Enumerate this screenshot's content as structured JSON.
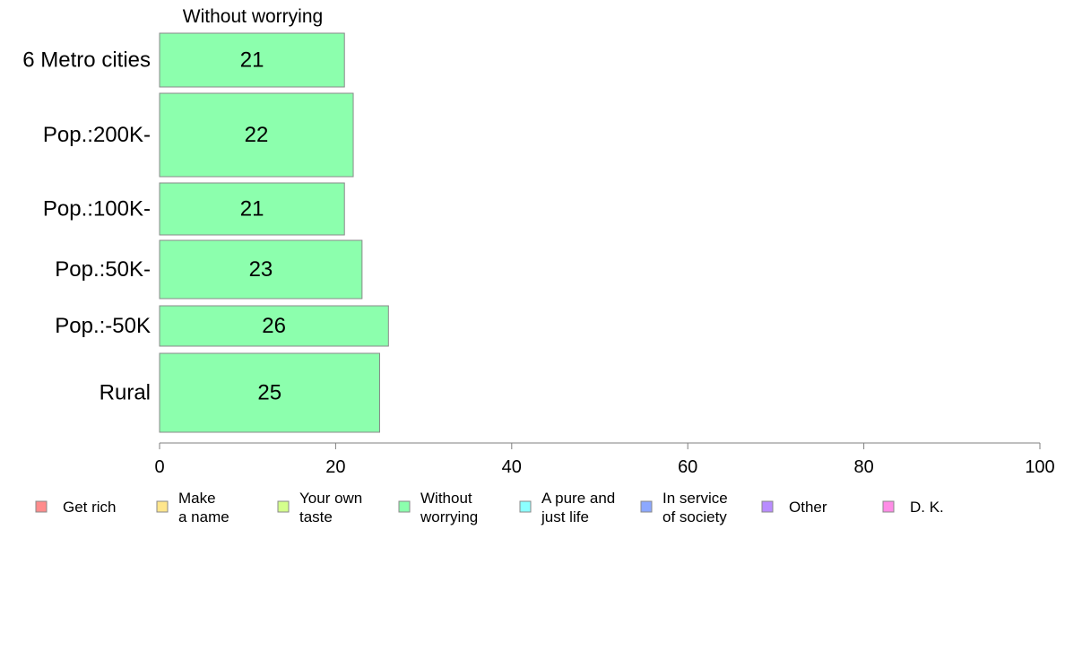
{
  "chart_data": {
    "type": "bar",
    "orientation": "horizontal",
    "title": "Without worrying",
    "categories": [
      "6 Metro cities",
      "Pop.:200K-",
      "Pop.:100K-",
      "Pop.:50K-",
      "Pop.:-50K",
      "Rural"
    ],
    "series": [
      {
        "name": "Without worrying",
        "values": [
          21,
          22,
          21,
          23,
          26,
          25
        ],
        "color": "#8CFFAD"
      }
    ],
    "xlim": [
      0,
      100
    ],
    "xticks": [
      0,
      20,
      40,
      60,
      80,
      100
    ],
    "grid": false,
    "legend_position": "bottom",
    "legend": [
      {
        "label": [
          "Get rich"
        ],
        "color": "#FF8C8C"
      },
      {
        "label": [
          "Make",
          "a name"
        ],
        "color": "#FFE68C"
      },
      {
        "label": [
          "Your own",
          "taste"
        ],
        "color": "#D4FF8C"
      },
      {
        "label": [
          "Without",
          "worrying"
        ],
        "color": "#8CFFAD"
      },
      {
        "label": [
          "A pure and",
          "just life"
        ],
        "color": "#8CFFFF"
      },
      {
        "label": [
          "In service",
          "of society"
        ],
        "color": "#8CA8FF"
      },
      {
        "label": [
          "Other"
        ],
        "color": "#B88CFF"
      },
      {
        "label": [
          "D. K."
        ],
        "color": "#FF8CE6"
      }
    ]
  }
}
